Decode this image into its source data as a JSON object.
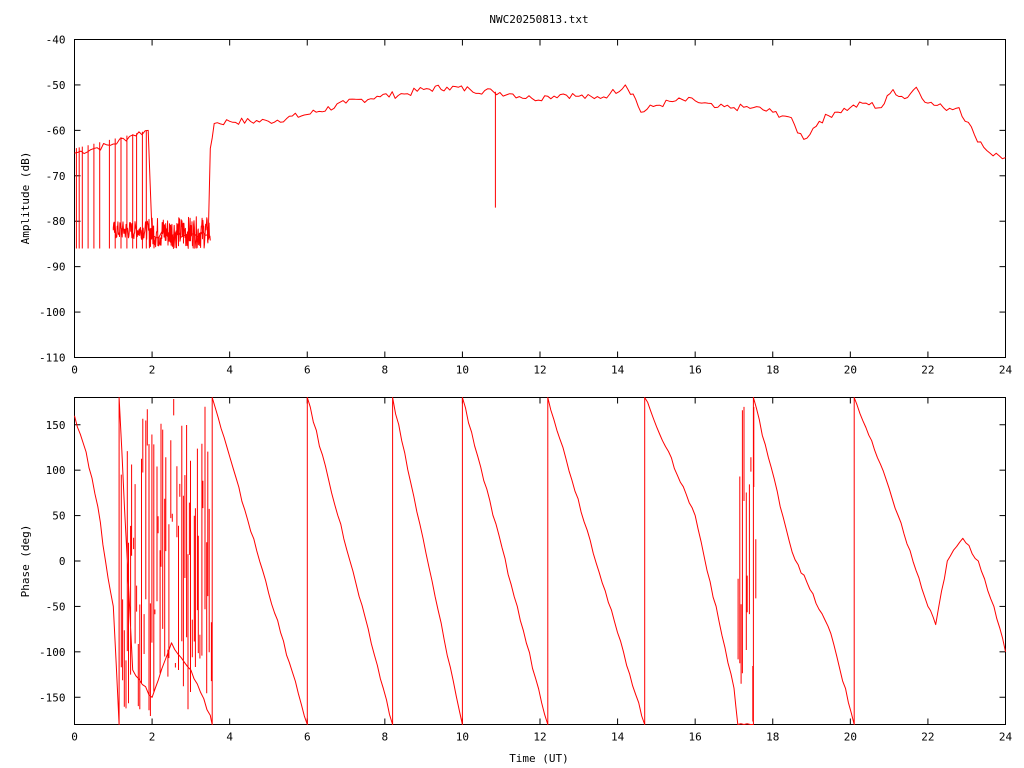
{
  "title": "NWC20250813.txt",
  "chart_data": [
    {
      "type": "line",
      "ylabel": "Amplitude (dB)",
      "xlabel": "",
      "xlim": [
        0,
        24
      ],
      "ylim": [
        -110,
        -40
      ],
      "xticks": [
        "0",
        "2",
        "4",
        "6",
        "8",
        "10",
        "12",
        "14",
        "16",
        "18",
        "20",
        "22",
        "24"
      ],
      "yticks": [
        "-40",
        "-50",
        "-60",
        "-70",
        "-80",
        "-90",
        "-100",
        "-110"
      ],
      "grid": false,
      "legend": "none",
      "series_color": "#ff0000",
      "series": [
        {
          "x": [
            0.0,
            0.5,
            1.0,
            1.5,
            1.9,
            2.0,
            2.5,
            3.0,
            3.45,
            3.5,
            3.6,
            4.0,
            5.0,
            6.0,
            7.0,
            7.8,
            8.5,
            9.0,
            9.6,
            10.2,
            10.8,
            11.3,
            11.8,
            12.2,
            12.6,
            13.0,
            13.4,
            13.8,
            14.2,
            14.4,
            14.6,
            15.0,
            15.5,
            16.0,
            16.5,
            17.0,
            17.5,
            18.0,
            18.4,
            18.8,
            19.2,
            19.6,
            20.0,
            20.4,
            20.8,
            21.1,
            21.4,
            21.7,
            22.0,
            22.4,
            22.8,
            23.2,
            23.6,
            24.0
          ],
          "y": [
            -65,
            -64,
            -63,
            -61,
            -60,
            -83,
            -83,
            -83,
            -83,
            -64,
            -58.5,
            -58,
            -58,
            -56.5,
            -54,
            -52.5,
            -52,
            -51,
            -50.5,
            -51,
            -51.5,
            -52,
            -53,
            -52.5,
            -52,
            -52.5,
            -53,
            -52,
            -50,
            -52,
            -56,
            -54.5,
            -53.5,
            -53.5,
            -55,
            -55,
            -55,
            -56,
            -57,
            -62,
            -58,
            -56,
            -55,
            -54,
            -55,
            -51,
            -53,
            -50.5,
            -54,
            -55,
            -55,
            -61,
            -65,
            -66
          ]
        }
      ],
      "annotations": [
        {
          "note": "dropouts to about -86 dB",
          "x_range": [
            0.0,
            1.9
          ]
        },
        {
          "note": "spike to -77 dB",
          "x": 10.85
        }
      ]
    },
    {
      "type": "line",
      "ylabel": "Phase (deg)",
      "xlabel": "Time (UT)",
      "xlim": [
        0,
        24
      ],
      "ylim": [
        -180,
        180
      ],
      "xticks": [
        "0",
        "2",
        "4",
        "6",
        "8",
        "10",
        "12",
        "14",
        "16",
        "18",
        "20",
        "22",
        "24"
      ],
      "yticks": [
        "150",
        "100",
        "50",
        "0",
        "-50",
        "-100",
        "-150"
      ],
      "grid": false,
      "legend": "none",
      "series_color": "#ff0000",
      "series": [
        {
          "x": [
            0.0,
            0.3,
            0.6,
            0.8,
            1.0,
            1.15,
            1.15,
            1.5,
            2.0,
            2.5,
            3.0,
            3.5,
            3.55,
            3.55,
            6.0,
            6.0,
            8.2,
            8.2,
            10.0,
            10.0,
            12.2,
            12.2,
            14.7,
            14.7,
            16.0,
            17.0,
            17.1,
            17.5,
            17.5,
            18.5,
            19.5,
            20.1,
            20.1,
            21.0,
            22.0,
            22.2,
            22.5,
            22.9,
            23.3,
            23.7,
            24.0
          ],
          "y": [
            160,
            120,
            60,
            0,
            -50,
            -180,
            180,
            -120,
            -150,
            -90,
            -120,
            -170,
            -180,
            180,
            -180,
            180,
            -180,
            180,
            -180,
            180,
            -180,
            180,
            -180,
            180,
            50,
            -140,
            -180,
            -180,
            180,
            10,
            -80,
            -180,
            180,
            80,
            -50,
            -70,
            0,
            25,
            0,
            -50,
            -100
          ]
        }
      ],
      "annotations": [
        {
          "note": "noisy phase wrapping",
          "x_range": [
            1.2,
            3.6
          ]
        },
        {
          "note": "noisy phase wrapping",
          "x_range": [
            17.1,
            17.6
          ]
        }
      ]
    }
  ]
}
